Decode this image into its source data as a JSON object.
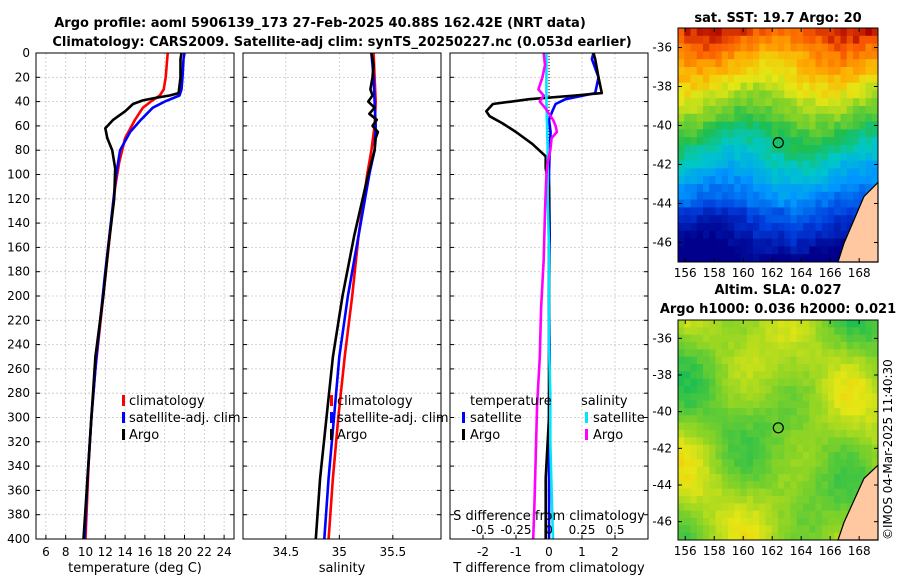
{
  "header": {
    "title_line1": "Argo profile: aoml 5906139_173 27-Feb-2025 40.88S 162.42E (NRT data)",
    "title_line2": "Climatology: CARS2009. Satellite-adj clim: synTS_20250227.nc (0.053d earlier)"
  },
  "colors": {
    "climatology": "#ff0000",
    "satellite": "#0000ff",
    "argo": "#000000",
    "sat_salinity": "#00e5ff",
    "argo_salinity": "#ff00ff",
    "land": "#ffc8a0"
  },
  "chart_data": [
    {
      "id": "temperature",
      "type": "line",
      "xlabel": "temperature (deg C)",
      "ylabel": "",
      "xlim": [
        5,
        25
      ],
      "ylim": [
        400,
        0
      ],
      "xticks": [
        "6",
        "8",
        "10",
        "12",
        "14",
        "16",
        "18",
        "20",
        "22",
        "24"
      ],
      "yticks": [
        "0",
        "20",
        "40",
        "60",
        "80",
        "100",
        "120",
        "140",
        "160",
        "180",
        "200",
        "220",
        "240",
        "260",
        "280",
        "300",
        "320",
        "340",
        "360",
        "380",
        "400"
      ],
      "legend": [
        "climatology",
        "satellite-adj. clim",
        "Argo"
      ],
      "series": [
        {
          "name": "climatology",
          "depth": [
            0,
            10,
            20,
            30,
            35,
            40,
            45,
            55,
            70,
            90,
            110,
            140,
            200,
            260,
            300,
            340,
            400
          ],
          "values": [
            18.3,
            18.2,
            18.1,
            17.9,
            17.5,
            16.6,
            15.8,
            15.0,
            14.0,
            13.4,
            13.0,
            12.6,
            11.8,
            11.0,
            10.6,
            10.3,
            10.0
          ]
        },
        {
          "name": "satellite-adj. clim",
          "depth": [
            0,
            5,
            20,
            30,
            35,
            40,
            45,
            55,
            65,
            80,
            100,
            130,
            180,
            250,
            300,
            350,
            400
          ],
          "values": [
            20.0,
            19.9,
            19.8,
            19.7,
            19.5,
            18.0,
            16.8,
            15.6,
            14.5,
            13.5,
            13.1,
            12.7,
            12.0,
            11.1,
            10.6,
            10.2,
            9.9
          ]
        },
        {
          "name": "Argo",
          "depth": [
            0,
            5,
            20,
            33,
            35,
            37,
            39,
            42,
            48,
            55,
            62,
            70,
            80,
            95,
            120,
            160,
            200,
            250,
            300,
            350,
            400
          ],
          "values": [
            19.7,
            19.6,
            19.6,
            19.4,
            18.5,
            17.0,
            15.8,
            14.8,
            14.0,
            12.8,
            12.0,
            12.2,
            12.7,
            13.0,
            12.9,
            12.3,
            11.8,
            11.0,
            10.6,
            10.2,
            9.8
          ]
        }
      ]
    },
    {
      "id": "salinity",
      "type": "line",
      "xlabel": "salinity",
      "ylabel": "",
      "xlim": [
        34.1,
        35.95
      ],
      "ylim": [
        400,
        0
      ],
      "xticks": [
        "34.5",
        "35",
        "35.5"
      ],
      "legend": [
        "climatology",
        "satellite-adj. clim",
        "Argo"
      ],
      "series": [
        {
          "name": "climatology",
          "depth": [
            0,
            20,
            40,
            60,
            80,
            100,
            150,
            200,
            250,
            300,
            350,
            400
          ],
          "values": [
            35.32,
            35.33,
            35.34,
            35.33,
            35.3,
            35.26,
            35.18,
            35.12,
            35.05,
            34.99,
            34.94,
            34.9
          ]
        },
        {
          "name": "satellite-adj. clim",
          "depth": [
            0,
            20,
            40,
            60,
            80,
            100,
            150,
            200,
            250,
            300,
            350,
            400
          ],
          "values": [
            35.3,
            35.32,
            35.33,
            35.34,
            35.33,
            35.28,
            35.18,
            35.08,
            35.0,
            34.95,
            34.9,
            34.86
          ]
        },
        {
          "name": "Argo",
          "depth": [
            0,
            10,
            20,
            30,
            35,
            40,
            45,
            50,
            55,
            60,
            65,
            70,
            80,
            100,
            150,
            200,
            250,
            300,
            350,
            400
          ],
          "values": [
            35.3,
            35.32,
            35.31,
            35.29,
            35.31,
            35.27,
            35.33,
            35.28,
            35.35,
            35.31,
            35.36,
            35.34,
            35.33,
            35.27,
            35.14,
            35.03,
            34.94,
            34.88,
            34.82,
            34.78
          ]
        }
      ]
    },
    {
      "id": "differences",
      "type": "line",
      "xlabel": "T difference from climatology",
      "xlabel2": "S difference from climatology",
      "xlim": [
        -3,
        3
      ],
      "ylim": [
        400,
        0
      ],
      "xticks": [
        "-2",
        "-1",
        "0",
        "1",
        "2"
      ],
      "xticks2": [
        "-0.5",
        "-0.25",
        "0",
        "0.25",
        "0.5"
      ],
      "legend_left_title": "temperature",
      "legend_right_title": "salinity",
      "legend": [
        "satellite",
        "Argo",
        "satellite",
        "Argo"
      ],
      "series": [
        {
          "name": "temperature satellite",
          "depth": [
            0,
            5,
            20,
            33,
            38,
            42,
            48,
            55,
            65,
            80,
            100,
            150,
            200,
            250,
            300,
            350,
            400
          ],
          "values": [
            1.35,
            1.3,
            1.5,
            1.4,
            0.5,
            0.2,
            0.1,
            0.0,
            0.05,
            0.02,
            0.0,
            0.02,
            0.0,
            0.02,
            0.0,
            0.0,
            0.0
          ]
        },
        {
          "name": "temperature Argo",
          "depth": [
            0,
            5,
            20,
            33,
            35,
            38,
            42,
            48,
            52,
            58,
            65,
            75,
            85,
            95,
            110,
            150,
            200,
            250,
            300,
            350,
            400
          ],
          "values": [
            1.35,
            1.4,
            1.5,
            1.6,
            0.8,
            -0.6,
            -1.7,
            -1.9,
            -1.8,
            -1.4,
            -1.0,
            -0.5,
            -0.1,
            -0.1,
            0.0,
            0.0,
            0.0,
            0.0,
            0.0,
            -0.1,
            -0.1
          ]
        },
        {
          "name": "salinity satellite",
          "depth": [
            0,
            40,
            80,
            120,
            160,
            200,
            240,
            280,
            320,
            360,
            400
          ],
          "values": [
            -0.02,
            -0.02,
            -0.01,
            -0.01,
            0.0,
            0.0,
            0.0,
            0.01,
            0.01,
            0.02,
            0.03
          ]
        },
        {
          "name": "salinity Argo",
          "depth": [
            0,
            10,
            20,
            30,
            35,
            40,
            45,
            55,
            60,
            65,
            70,
            80,
            90,
            100,
            130,
            170,
            210,
            250,
            290,
            330,
            370,
            400
          ],
          "values": [
            -0.04,
            -0.03,
            -0.05,
            -0.08,
            -0.04,
            -0.07,
            -0.03,
            0.03,
            0.05,
            0.06,
            0.02,
            0.01,
            -0.01,
            -0.02,
            -0.03,
            -0.04,
            -0.06,
            -0.07,
            -0.09,
            -0.1,
            -0.11,
            -0.12
          ]
        }
      ]
    },
    {
      "id": "sst_map",
      "type": "heatmap",
      "title": "sat. SST: 19.7 Argo: 20",
      "xticks": [
        "156",
        "158",
        "160",
        "162",
        "164",
        "166",
        "168"
      ],
      "yticks": [
        "-36",
        "-38",
        "-40",
        "-42",
        "-44",
        "-46"
      ],
      "lon_range": [
        155.5,
        169.3
      ],
      "lat_range": [
        -47.0,
        -35.0
      ],
      "marker": {
        "lon": 162.42,
        "lat": -40.88
      }
    },
    {
      "id": "sla_map",
      "type": "heatmap",
      "title_line1": "Altim. SLA: 0.027",
      "title_line2": "Argo h1000: 0.036 h2000: 0.021",
      "xticks": [
        "156",
        "158",
        "160",
        "162",
        "164",
        "166",
        "168"
      ],
      "yticks": [
        "-36",
        "-38",
        "-40",
        "-42",
        "-44",
        "-46"
      ],
      "lon_range": [
        155.5,
        169.3
      ],
      "lat_range": [
        -47.0,
        -35.0
      ],
      "marker": {
        "lon": 162.42,
        "lat": -40.88
      }
    }
  ],
  "footer": {
    "copyright": "©IMOS 04-Mar-2025 11:40:30"
  }
}
